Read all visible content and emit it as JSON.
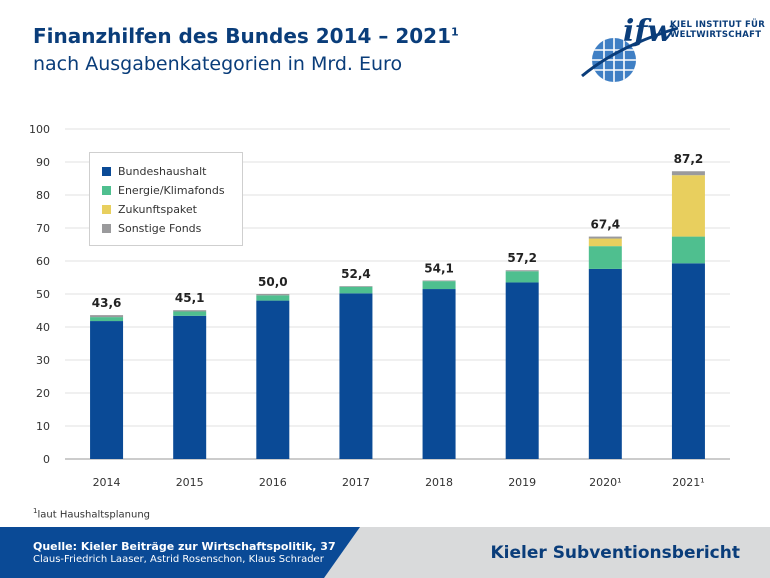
{
  "header": {
    "title": "Finanzhilfen des Bundes 2014 – 2021",
    "title_sup": "1",
    "subtitle": "nach Ausgabenkategorien in Mrd. Euro"
  },
  "logo": {
    "mark": "ifw",
    "line1": "KIEL INSTITUT FÜR",
    "line2": "WELTWIRTSCHAFT",
    "icon": "globe-icon"
  },
  "chart_data": {
    "type": "bar",
    "stacked": true,
    "categories": [
      "2014",
      "2015",
      "2016",
      "2017",
      "2018",
      "2019",
      "2020¹",
      "2021¹"
    ],
    "series": [
      {
        "name": "Bundeshaushalt",
        "color": "#0a4a96",
        "values": [
          41.8,
          43.4,
          48.0,
          50.2,
          51.5,
          53.5,
          57.6,
          59.3
        ]
      },
      {
        "name": "Energie/Klimafonds",
        "color": "#4fbf8f",
        "values": [
          1.2,
          1.3,
          1.6,
          2.0,
          2.4,
          3.4,
          6.9,
          8.1
        ]
      },
      {
        "name": "Zukunftspaket",
        "color": "#e8cf5e",
        "values": [
          0,
          0,
          0,
          0,
          0,
          0,
          2.3,
          18.6
        ]
      },
      {
        "name": "Sonstige Fonds",
        "color": "#9a9a9c",
        "values": [
          0.6,
          0.4,
          0.4,
          0.2,
          0.2,
          0.3,
          0.6,
          1.2
        ]
      }
    ],
    "totals": [
      "43,6",
      "45,1",
      "50,0",
      "52,4",
      "54,1",
      "57,2",
      "67,4",
      "87,2"
    ],
    "ylim": [
      0,
      100
    ],
    "yticks": [
      "0",
      "10",
      "20",
      "30",
      "40",
      "50",
      "60",
      "70",
      "80",
      "90",
      "100"
    ],
    "grid": true,
    "legend_position": "top-left"
  },
  "footnote": {
    "sup": "1",
    "text": "laut Haushaltsplanung"
  },
  "footer": {
    "source_line1": "Quelle: Kieler Beiträge zur Wirtschaftspolitik, 37",
    "source_line2": "Claus-Friedrich Laaser, Astrid Rosenschon, Klaus Schrader",
    "report_title": "Kieler Subventionsbericht"
  }
}
